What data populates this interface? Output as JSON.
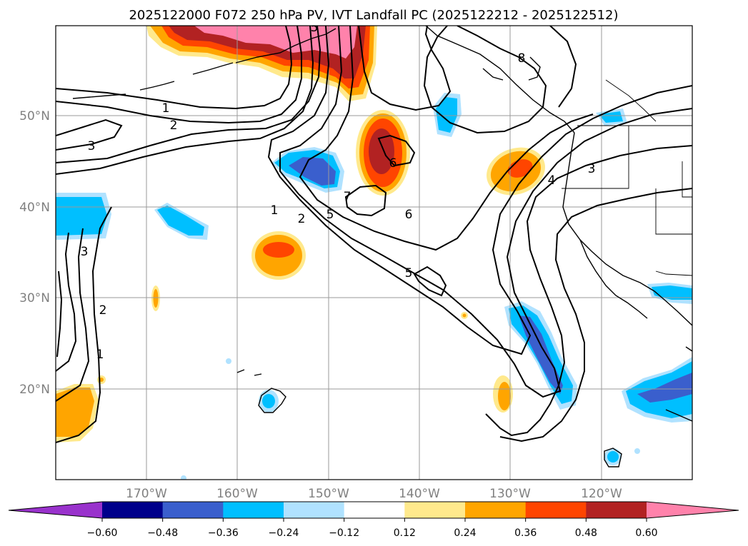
{
  "title": "2025122000 F072 250 hPa PV, IVT Landfall PC (2025122212 - 2025122512)",
  "lat_labels": [
    "50°N",
    "40°N",
    "30°N",
    "20°N"
  ],
  "lon_labels": [
    "170°W",
    "160°W",
    "150°W",
    "140°W",
    "130°W",
    "120°W"
  ],
  "colorbar": {
    "ticks": [
      "−0.60",
      "−0.48",
      "−0.36",
      "−0.24",
      "−0.12",
      "0.12",
      "0.24",
      "0.36",
      "0.48",
      "0.60"
    ],
    "colors": [
      "#9932cc",
      "#00008b",
      "#3a5fcd",
      "#00bfff",
      "#b0e2ff",
      "#ffffff",
      "#ffe98c",
      "#ffa500",
      "#ff4500",
      "#b22222",
      "#ff82ab"
    ]
  },
  "contour_labels": [
    "1",
    "2",
    "3",
    "1",
    "2",
    "5",
    "6",
    "7",
    "6",
    "5",
    "4",
    "3",
    "8",
    "3",
    "2",
    "1",
    "5"
  ],
  "map_extent": {
    "lon": [
      -180,
      -110
    ],
    "lat": [
      10,
      60
    ]
  }
}
